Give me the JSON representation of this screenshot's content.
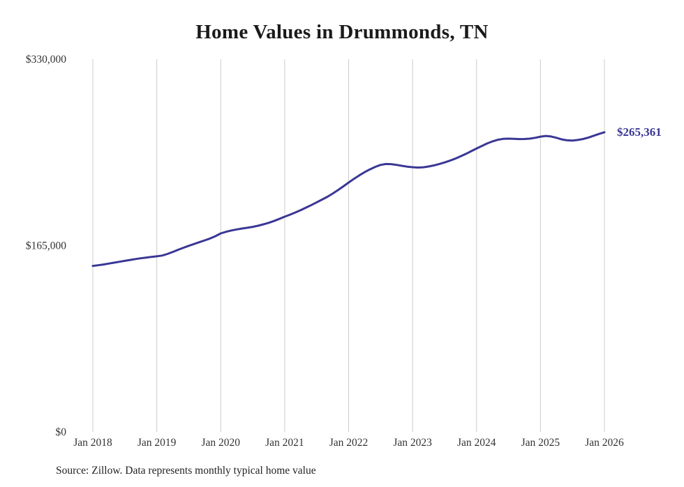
{
  "page": {
    "source_note": "Source: Zillow. Data represents monthly typical home value"
  },
  "chart_data": {
    "type": "line",
    "title": "Home Values in Drummonds, TN",
    "series_name": "Monthly typical home value",
    "unit": "USD",
    "x_start_month": "2018-01",
    "x_end_month": "2026-01",
    "x_interval": "monthly",
    "y_axis_max": 330000,
    "y_ticks": [
      {
        "value": 0,
        "label": "$0"
      },
      {
        "value": 165000,
        "label": "$165,000"
      },
      {
        "value": 330000,
        "label": "$330,000"
      }
    ],
    "x_ticks": [
      {
        "month_index": 0,
        "label": "Jan 2018"
      },
      {
        "month_index": 12,
        "label": "Jan 2019"
      },
      {
        "month_index": 24,
        "label": "Jan 2020"
      },
      {
        "month_index": 36,
        "label": "Jan 2021"
      },
      {
        "month_index": 48,
        "label": "Jan 2022"
      },
      {
        "month_index": 60,
        "label": "Jan 2023"
      },
      {
        "month_index": 72,
        "label": "Jan 2024"
      },
      {
        "month_index": 84,
        "label": "Jan 2025"
      },
      {
        "month_index": 96,
        "label": "Jan 2026"
      }
    ],
    "values": [
      147000,
      147600,
      148300,
      149100,
      149900,
      150700,
      151500,
      152300,
      153100,
      153800,
      154400,
      155000,
      155500,
      156200,
      157600,
      159400,
      161300,
      163100,
      164800,
      166400,
      168000,
      169600,
      171300,
      173300,
      175800,
      177200,
      178400,
      179300,
      180100,
      180800,
      181600,
      182600,
      183800,
      185200,
      186800,
      188600,
      190600,
      192400,
      194300,
      196400,
      198600,
      200900,
      203300,
      205700,
      208200,
      211000,
      214100,
      217400,
      220800,
      224100,
      227200,
      230000,
      232500,
      234700,
      236400,
      237200,
      237100,
      236400,
      235600,
      234900,
      234400,
      234100,
      234300,
      235000,
      236000,
      237200,
      238600,
      240200,
      242000,
      244000,
      246200,
      248600,
      251000,
      253200,
      255400,
      257300,
      258700,
      259500,
      259700,
      259500,
      259300,
      259400,
      259700,
      260400,
      261500,
      262100,
      261600,
      260400,
      259000,
      258200,
      258000,
      258500,
      259400,
      260700,
      262300,
      263900,
      265361
    ],
    "final_value": 265361,
    "end_label": "$265,361",
    "colors": {
      "line": "#3a3795",
      "grid": "#cccccc",
      "axis_text": "#333333"
    },
    "legend": "none",
    "grid": "vertical-only"
  }
}
